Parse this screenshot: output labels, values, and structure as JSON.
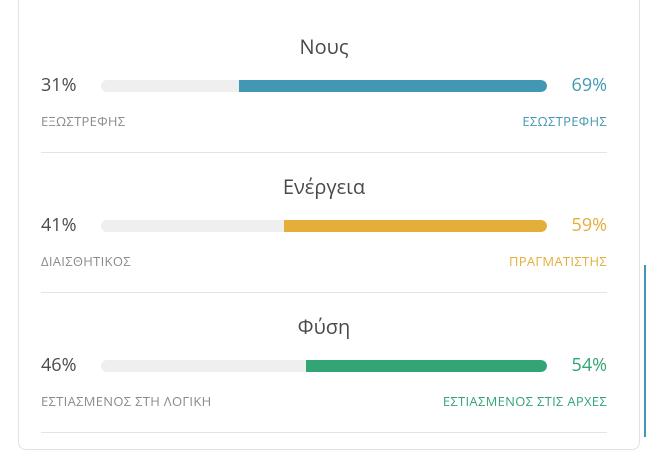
{
  "items": [
    {
      "title": "Νους",
      "left_value": 31,
      "left_label": "31%",
      "right_value": 69,
      "right_label": "69%",
      "left_trait": "ΕΞΩΣΤΡΕΦΗΣ",
      "right_trait": "ΕΣΩΣΤΡΕΦΗΣ",
      "color": "#4298b4"
    },
    {
      "title": "Ενέργεια",
      "left_value": 41,
      "left_label": "41%",
      "right_value": 59,
      "right_label": "59%",
      "left_trait": "ΔΙΑΙΣΘΗΤΙΚΟΣ",
      "right_trait": "ΠΡΑΓΜΑΤΙΣΤΗΣ",
      "color": "#e4ae3a"
    },
    {
      "title": "Φύση",
      "left_value": 46,
      "left_label": "46%",
      "right_value": 54,
      "right_label": "54%",
      "left_trait": "ΕΣΤΙΑΣΜΕΝΟΣ ΣΤΗ ΛΟΓΙΚΗ",
      "right_trait": "ΕΣΤΙΑΣΜΕΝΟΣ ΣΤΙΣ ΑΡΧΕΣ",
      "color": "#33a474"
    }
  ]
}
